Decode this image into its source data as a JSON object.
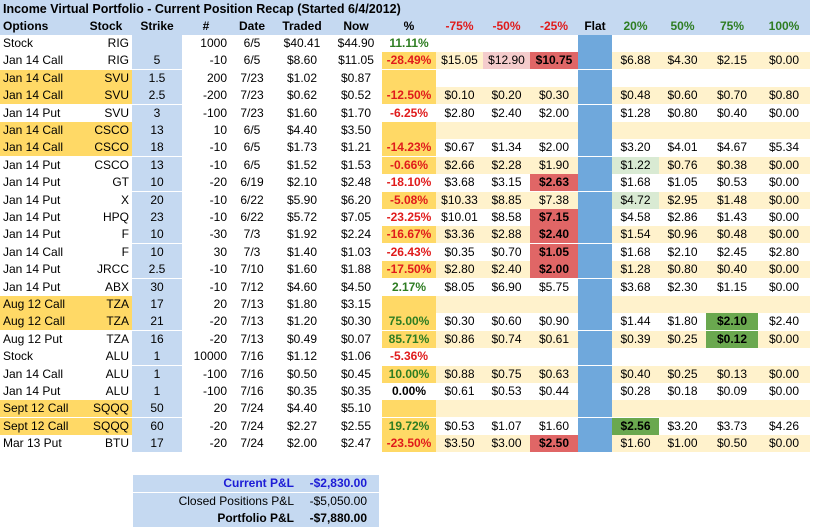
{
  "title": "Income Virtual Portfolio - Current Position Recap (Started 6/4/2012)",
  "headers": [
    "Options",
    "Stock",
    "Strike",
    "#",
    "Date",
    "Traded",
    "Now",
    "%",
    "-75%",
    "-50%",
    "-25%",
    "Flat",
    "20%",
    "50%",
    "75%",
    "100%"
  ],
  "colors": {
    "header_bg": "#c5d9f1",
    "strike_blue": "#c5d9f1",
    "flat_blue": "#6fa8dc",
    "highlight_yellow": "#ffd966",
    "band_yellow": "#fff2cc",
    "red_fill": "#e06666",
    "pink_fill": "#f4cccc",
    "green_fill": "#6aa84f",
    "light_green_fill": "#d9ead3",
    "pos_text": "#2e7d22",
    "neg_text": "#e01b1b",
    "blue_text": "#1c1cd6"
  },
  "rows": [
    {
      "option": "Stock",
      "stock": "RIG",
      "strike": "",
      "qty": "1000",
      "date": "6/5",
      "traded": "$40.41",
      "now": "$44.90",
      "pct": "11.11%",
      "sign": "pos",
      "m75": "",
      "m50": "",
      "m25": "",
      "flat": "",
      "p20": "",
      "p50": "",
      "p75": "",
      "p100": "",
      "hl": false,
      "band": false
    },
    {
      "option": "Jan 14 Call",
      "stock": "RIG",
      "strike": "5",
      "qty": "-10",
      "date": "6/5",
      "traded": "$8.60",
      "now": "$11.05",
      "pct": "-28.49%",
      "sign": "neg",
      "m75": "$15.05",
      "m50": "$12.90",
      "m25": "$10.75",
      "flat": "",
      "p20": "$6.88",
      "p50": "$4.30",
      "p75": "$2.15",
      "p100": "$0.00",
      "hl": false,
      "band": true,
      "f_m50": "pink",
      "f_m25": "red"
    },
    {
      "option": "Jan 14 Call",
      "stock": "SVU",
      "strike": "1.5",
      "qty": "200",
      "date": "7/23",
      "traded": "$1.02",
      "now": "$0.87",
      "pct": "",
      "sign": "",
      "m75": "",
      "m50": "",
      "m25": "",
      "flat": "",
      "p20": "",
      "p50": "",
      "p75": "",
      "p100": "",
      "hl": true,
      "band": false
    },
    {
      "option": "Jan 14 Call",
      "stock": "SVU",
      "strike": "2.5",
      "qty": "-200",
      "date": "7/23",
      "traded": "$0.62",
      "now": "$0.52",
      "pct": "-12.50%",
      "sign": "neg",
      "m75": "$0.10",
      "m50": "$0.20",
      "m25": "$0.30",
      "flat": "",
      "p20": "$0.48",
      "p50": "$0.60",
      "p75": "$0.70",
      "p100": "$0.80",
      "hl": true,
      "band": true
    },
    {
      "option": "Jan 14 Put",
      "stock": "SVU",
      "strike": "3",
      "qty": "-100",
      "date": "7/23",
      "traded": "$1.60",
      "now": "$1.70",
      "pct": "-6.25%",
      "sign": "neg",
      "m75": "$2.80",
      "m50": "$2.40",
      "m25": "$2.00",
      "flat": "",
      "p20": "$1.28",
      "p50": "$0.80",
      "p75": "$0.40",
      "p100": "$0.00",
      "hl": false,
      "band": false
    },
    {
      "option": "Jan 14 Call",
      "stock": "CSCO",
      "strike": "13",
      "qty": "10",
      "date": "6/5",
      "traded": "$4.40",
      "now": "$3.50",
      "pct": "",
      "sign": "",
      "m75": "",
      "m50": "",
      "m25": "",
      "flat": "",
      "p20": "",
      "p50": "",
      "p75": "",
      "p100": "",
      "hl": true,
      "band": true
    },
    {
      "option": "Jan 14 Call",
      "stock": "CSCO",
      "strike": "18",
      "qty": "-10",
      "date": "6/5",
      "traded": "$1.73",
      "now": "$1.21",
      "pct": "-14.23%",
      "sign": "neg",
      "m75": "$0.67",
      "m50": "$1.34",
      "m25": "$2.00",
      "flat": "",
      "p20": "$3.20",
      "p50": "$4.01",
      "p75": "$4.67",
      "p100": "$5.34",
      "hl": true,
      "band": false
    },
    {
      "option": "Jan 14 Put",
      "stock": "CSCO",
      "strike": "13",
      "qty": "-10",
      "date": "6/5",
      "traded": "$1.52",
      "now": "$1.53",
      "pct": "-0.66%",
      "sign": "neg",
      "m75": "$2.66",
      "m50": "$2.28",
      "m25": "$1.90",
      "flat": "",
      "p20": "$1.22",
      "p50": "$0.76",
      "p75": "$0.38",
      "p100": "$0.00",
      "hl": false,
      "band": true,
      "f_p20": "lgreen"
    },
    {
      "option": "Jan 14 Put",
      "stock": "GT",
      "strike": "10",
      "qty": "-20",
      "date": "6/19",
      "traded": "$2.10",
      "now": "$2.48",
      "pct": "-18.10%",
      "sign": "neg",
      "m75": "$3.68",
      "m50": "$3.15",
      "m25": "$2.63",
      "flat": "",
      "p20": "$1.68",
      "p50": "$1.05",
      "p75": "$0.53",
      "p100": "$0.00",
      "hl": false,
      "band": false,
      "f_m25": "red"
    },
    {
      "option": "Jan 14 Put",
      "stock": "X",
      "strike": "20",
      "qty": "-10",
      "date": "6/22",
      "traded": "$5.90",
      "now": "$6.20",
      "pct": "-5.08%",
      "sign": "neg",
      "m75": "$10.33",
      "m50": "$8.85",
      "m25": "$7.38",
      "flat": "",
      "p20": "$4.72",
      "p50": "$2.95",
      "p75": "$1.48",
      "p100": "$0.00",
      "hl": false,
      "band": true,
      "f_p20": "lgreen"
    },
    {
      "option": "Jan 14 Put",
      "stock": "HPQ",
      "strike": "23",
      "qty": "-10",
      "date": "6/22",
      "traded": "$5.72",
      "now": "$7.05",
      "pct": "-23.25%",
      "sign": "neg",
      "m75": "$10.01",
      "m50": "$8.58",
      "m25": "$7.15",
      "flat": "",
      "p20": "$4.58",
      "p50": "$2.86",
      "p75": "$1.43",
      "p100": "$0.00",
      "hl": false,
      "band": false,
      "f_m25": "red"
    },
    {
      "option": "Jan 14 Put",
      "stock": "F",
      "strike": "10",
      "qty": "-30",
      "date": "7/3",
      "traded": "$1.92",
      "now": "$2.24",
      "pct": "-16.67%",
      "sign": "neg",
      "m75": "$3.36",
      "m50": "$2.88",
      "m25": "$2.40",
      "flat": "",
      "p20": "$1.54",
      "p50": "$0.96",
      "p75": "$0.48",
      "p100": "$0.00",
      "hl": false,
      "band": true,
      "f_m25": "red"
    },
    {
      "option": "Jan 14 Call",
      "stock": "F",
      "strike": "10",
      "qty": "30",
      "date": "7/3",
      "traded": "$1.40",
      "now": "$1.03",
      "pct": "-26.43%",
      "sign": "neg",
      "m75": "$0.35",
      "m50": "$0.70",
      "m25": "$1.05",
      "flat": "",
      "p20": "$1.68",
      "p50": "$2.10",
      "p75": "$2.45",
      "p100": "$2.80",
      "hl": false,
      "band": false,
      "f_m25": "red"
    },
    {
      "option": "Jan 14 Put",
      "stock": "JRCC",
      "strike": "2.5",
      "qty": "-10",
      "date": "7/10",
      "traded": "$1.60",
      "now": "$1.88",
      "pct": "-17.50%",
      "sign": "neg",
      "m75": "$2.80",
      "m50": "$2.40",
      "m25": "$2.00",
      "flat": "",
      "p20": "$1.28",
      "p50": "$0.80",
      "p75": "$0.40",
      "p100": "$0.00",
      "hl": false,
      "band": true,
      "f_m25": "red"
    },
    {
      "option": "Jan 14 Put",
      "stock": "ABX",
      "strike": "30",
      "qty": "-10",
      "date": "7/12",
      "traded": "$4.60",
      "now": "$4.50",
      "pct": "2.17%",
      "sign": "pos",
      "m75": "$8.05",
      "m50": "$6.90",
      "m25": "$5.75",
      "flat": "",
      "p20": "$3.68",
      "p50": "$2.30",
      "p75": "$1.15",
      "p100": "$0.00",
      "hl": false,
      "band": false
    },
    {
      "option": "Aug 12 Call",
      "stock": "TZA",
      "strike": "17",
      "qty": "20",
      "date": "7/13",
      "traded": "$1.80",
      "now": "$3.15",
      "pct": "",
      "sign": "",
      "m75": "",
      "m50": "",
      "m25": "",
      "flat": "",
      "p20": "",
      "p50": "",
      "p75": "",
      "p100": "",
      "hl": true,
      "band": true
    },
    {
      "option": "Aug 12 Call",
      "stock": "TZA",
      "strike": "21",
      "qty": "-20",
      "date": "7/13",
      "traded": "$1.20",
      "now": "$0.30",
      "pct": "75.00%",
      "sign": "pos",
      "m75": "$0.30",
      "m50": "$0.60",
      "m25": "$0.90",
      "flat": "",
      "p20": "$1.44",
      "p50": "$1.80",
      "p75": "$2.10",
      "p100": "$2.40",
      "hl": true,
      "band": false,
      "f_p75": "green"
    },
    {
      "option": "Aug 12 Put",
      "stock": "TZA",
      "strike": "16",
      "qty": "-20",
      "date": "7/13",
      "traded": "$0.49",
      "now": "$0.07",
      "pct": "85.71%",
      "sign": "pos",
      "m75": "$0.86",
      "m50": "$0.74",
      "m25": "$0.61",
      "flat": "",
      "p20": "$0.39",
      "p50": "$0.25",
      "p75": "$0.12",
      "p100": "$0.00",
      "hl": false,
      "band": true,
      "f_p75": "green"
    },
    {
      "option": "Stock",
      "stock": "ALU",
      "strike": "1",
      "qty": "10000",
      "date": "7/16",
      "traded": "$1.12",
      "now": "$1.06",
      "pct": "-5.36%",
      "sign": "neg",
      "m75": "",
      "m50": "",
      "m25": "",
      "flat": "",
      "p20": "",
      "p50": "",
      "p75": "",
      "p100": "",
      "hl": false,
      "band": false
    },
    {
      "option": "Jan 14 Call",
      "stock": "ALU",
      "strike": "1",
      "qty": "-100",
      "date": "7/16",
      "traded": "$0.50",
      "now": "$0.45",
      "pct": "10.00%",
      "sign": "pos",
      "m75": "$0.88",
      "m50": "$0.75",
      "m25": "$0.63",
      "flat": "",
      "p20": "$0.40",
      "p50": "$0.25",
      "p75": "$0.13",
      "p100": "$0.00",
      "hl": false,
      "band": true
    },
    {
      "option": "Jan 14 Put",
      "stock": "ALU",
      "strike": "1",
      "qty": "-100",
      "date": "7/16",
      "traded": "$0.35",
      "now": "$0.35",
      "pct": "0.00%",
      "sign": "neutral",
      "m75": "$0.61",
      "m50": "$0.53",
      "m25": "$0.44",
      "flat": "",
      "p20": "$0.28",
      "p50": "$0.18",
      "p75": "$0.09",
      "p100": "$0.00",
      "hl": false,
      "band": false
    },
    {
      "option": "Sept 12 Call",
      "stock": "SQQQ",
      "strike": "50",
      "qty": "20",
      "date": "7/24",
      "traded": "$4.40",
      "now": "$5.10",
      "pct": "",
      "sign": "",
      "m75": "",
      "m50": "",
      "m25": "",
      "flat": "",
      "p20": "",
      "p50": "",
      "p75": "",
      "p100": "",
      "hl": true,
      "band": true
    },
    {
      "option": "Sept 12 Call",
      "stock": "SQQQ",
      "strike": "60",
      "qty": "-20",
      "date": "7/24",
      "traded": "$2.27",
      "now": "$2.55",
      "pct": "19.72%",
      "sign": "pos",
      "m75": "$0.53",
      "m50": "$1.07",
      "m25": "$1.60",
      "flat": "",
      "p20": "$2.56",
      "p50": "$3.20",
      "p75": "$3.73",
      "p100": "$4.26",
      "hl": true,
      "band": false,
      "f_p20": "green"
    },
    {
      "option": "Mar 13 Put",
      "stock": "BTU",
      "strike": "17",
      "qty": "-20",
      "date": "7/24",
      "traded": "$2.00",
      "now": "$2.47",
      "pct": "-23.50%",
      "sign": "neg",
      "m75": "$3.50",
      "m50": "$3.00",
      "m25": "$2.50",
      "flat": "",
      "p20": "$1.60",
      "p50": "$1.00",
      "p75": "$0.50",
      "p100": "$0.00",
      "hl": false,
      "band": true,
      "f_m25": "red"
    }
  ],
  "summary": [
    {
      "label": "Current P&L",
      "value": "-$2,830.00",
      "style": "blue"
    },
    {
      "label": "Closed Positions P&L",
      "value": "-$5,050.00",
      "style": "normal"
    },
    {
      "label": "Portfolio P&L",
      "value": "-$7,880.00",
      "style": "bold"
    }
  ]
}
